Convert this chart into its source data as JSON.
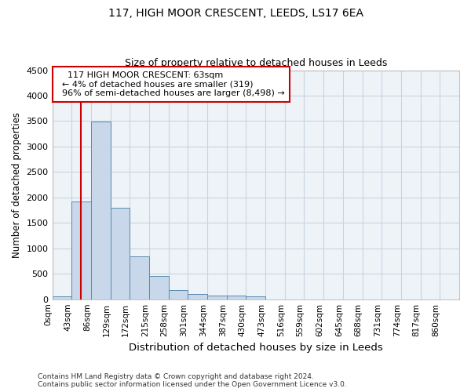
{
  "title1": "117, HIGH MOOR CRESCENT, LEEDS, LS17 6EA",
  "title2": "Size of property relative to detached houses in Leeds",
  "xlabel": "Distribution of detached houses by size in Leeds",
  "ylabel": "Number of detached properties",
  "footer1": "Contains HM Land Registry data © Crown copyright and database right 2024.",
  "footer2": "Contains public sector information licensed under the Open Government Licence v3.0.",
  "bin_labels": [
    "0sqm",
    "43sqm",
    "86sqm",
    "129sqm",
    "172sqm",
    "215sqm",
    "258sqm",
    "301sqm",
    "344sqm",
    "387sqm",
    "430sqm",
    "473sqm",
    "516sqm",
    "559sqm",
    "602sqm",
    "645sqm",
    "688sqm",
    "731sqm",
    "774sqm",
    "817sqm",
    "860sqm"
  ],
  "bar_values": [
    50,
    1920,
    3490,
    1790,
    840,
    450,
    175,
    100,
    75,
    65,
    55,
    0,
    0,
    0,
    0,
    0,
    0,
    0,
    0,
    0,
    0
  ],
  "bar_color": "#c8d8ea",
  "bar_edge_color": "#5a8ab0",
  "grid_color": "#c8d4e0",
  "background_color": "#eef3f8",
  "annotation_box_color": "#ffffff",
  "annotation_border_color": "#cc0000",
  "red_line_color": "#cc0000",
  "property_size": 63,
  "bin_width": 43,
  "annotation_line1": "117 HIGH MOOR CRESCENT: 63sqm",
  "annotation_line2": "← 4% of detached houses are smaller (319)",
  "annotation_line3": "96% of semi-detached houses are larger (8,498) →",
  "ylim": [
    0,
    4500
  ],
  "yticks": [
    0,
    500,
    1000,
    1500,
    2000,
    2500,
    3000,
    3500,
    4000,
    4500
  ],
  "n_bins": 21
}
